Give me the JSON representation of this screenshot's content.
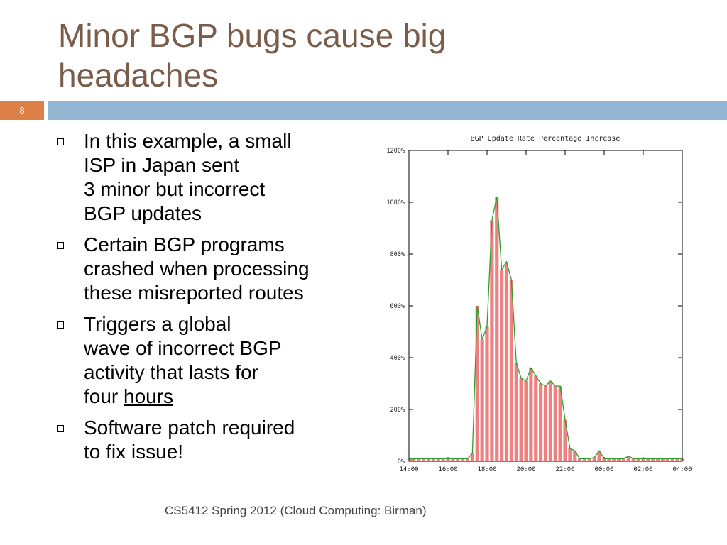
{
  "slide": {
    "title_lines": [
      "Minor BGP bugs cause big",
      "headaches"
    ],
    "number": "8",
    "footer": "CS5412 Spring 2012 (Cloud Computing: Birman)",
    "accent_color": "#dd8047",
    "bar_color": "#94b6d2",
    "title_color": "#7a5c4a"
  },
  "bullets": [
    {
      "lines": [
        "In this example, a small",
        "ISP in Japan sent",
        "3 minor but incorrect",
        "BGP updates"
      ]
    },
    {
      "lines": [
        "Certain BGP programs",
        "crashed when processing",
        "these misreported routes"
      ]
    },
    {
      "lines": [
        "Triggers a global",
        "wave of incorrect BGP",
        "activity that lasts for"
      ],
      "last_prefix": "four ",
      "last_underlined": "hours"
    },
    {
      "lines": [
        "Software patch required",
        "to fix issue!"
      ]
    }
  ],
  "chart_data": {
    "type": "bar",
    "title": "BGP Update Rate Percentage Increase",
    "x_ticks": [
      "14:00",
      "16:00",
      "18:00",
      "20:00",
      "22:00",
      "00:00",
      "02:00",
      "04:00"
    ],
    "y_ticks": [
      "0%",
      "200%",
      "400%",
      "600%",
      "800%",
      "1000%",
      "1200%"
    ],
    "ylim": [
      0,
      1200
    ],
    "xlim_hours": [
      14,
      28
    ],
    "x_hours": [
      14.0,
      14.25,
      14.5,
      14.75,
      15.0,
      15.25,
      15.5,
      15.75,
      16.0,
      16.25,
      16.5,
      16.75,
      17.0,
      17.25,
      17.5,
      17.75,
      18.0,
      18.25,
      18.5,
      18.75,
      19.0,
      19.25,
      19.5,
      19.75,
      20.0,
      20.25,
      20.5,
      20.75,
      21.0,
      21.25,
      21.5,
      21.75,
      22.0,
      22.25,
      22.5,
      22.75,
      23.0,
      23.25,
      23.5,
      23.75,
      24.0,
      24.25,
      24.5,
      24.75,
      25.0,
      25.25,
      25.5,
      25.75,
      26.0,
      26.25,
      26.5,
      26.75,
      27.0,
      27.25,
      27.5,
      27.75,
      28.0
    ],
    "values": [
      10,
      10,
      10,
      10,
      10,
      10,
      10,
      10,
      10,
      10,
      10,
      10,
      10,
      30,
      600,
      470,
      520,
      930,
      1020,
      740,
      770,
      700,
      380,
      320,
      310,
      360,
      330,
      300,
      290,
      310,
      290,
      290,
      160,
      50,
      40,
      10,
      10,
      10,
      15,
      40,
      10,
      10,
      10,
      10,
      10,
      20,
      10,
      10,
      10,
      10,
      10,
      10,
      10,
      10,
      10,
      10,
      10
    ],
    "bar_color": "#f08080",
    "line_color": "#2e9e2e"
  }
}
